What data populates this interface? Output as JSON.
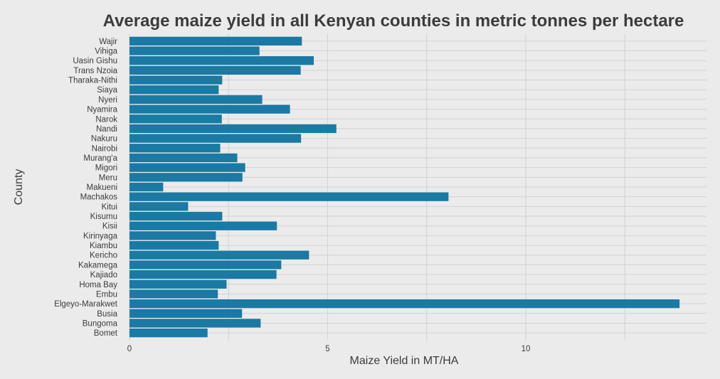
{
  "chart_data": {
    "type": "bar",
    "orientation": "horizontal",
    "title": "Average maize yield in all Kenyan counties in metric tonnes per hectare",
    "xlabel": "Maize Yield in MT/HA",
    "ylabel": "County",
    "xlim": [
      0,
      14.5
    ],
    "xticks": [
      0,
      5,
      10
    ],
    "grid": true,
    "colors": {
      "background": "#ebebeb",
      "bar": "#1a7aa3",
      "grid": "#d2d2d2"
    },
    "categories": [
      "Wajir",
      "Vihiga",
      "Uasin Gishu",
      "Trans Nzoia",
      "Tharaka-Nithi",
      "Siaya",
      "Nyeri",
      "Nyamira",
      "Narok",
      "Nandi",
      "Nakuru",
      "Nairobi",
      "Murang'a",
      "Migori",
      "Meru",
      "Makueni",
      "Machakos",
      "Kitui",
      "Kisumu",
      "Kisii",
      "Kirinyaga",
      "Kiambu",
      "Kericho",
      "Kakamega",
      "Kajiado",
      "Homa Bay",
      "Embu",
      "Elgeyo-Marakwet",
      "Busia",
      "Bungoma",
      "Bomet"
    ],
    "values": [
      4.35,
      3.28,
      4.65,
      4.32,
      2.34,
      2.25,
      3.35,
      4.05,
      2.33,
      5.22,
      4.33,
      2.29,
      2.72,
      2.92,
      2.85,
      0.85,
      8.05,
      1.48,
      2.34,
      3.72,
      2.18,
      2.25,
      4.53,
      3.83,
      3.71,
      2.45,
      2.23,
      13.88,
      2.84,
      3.31,
      1.97
    ]
  }
}
